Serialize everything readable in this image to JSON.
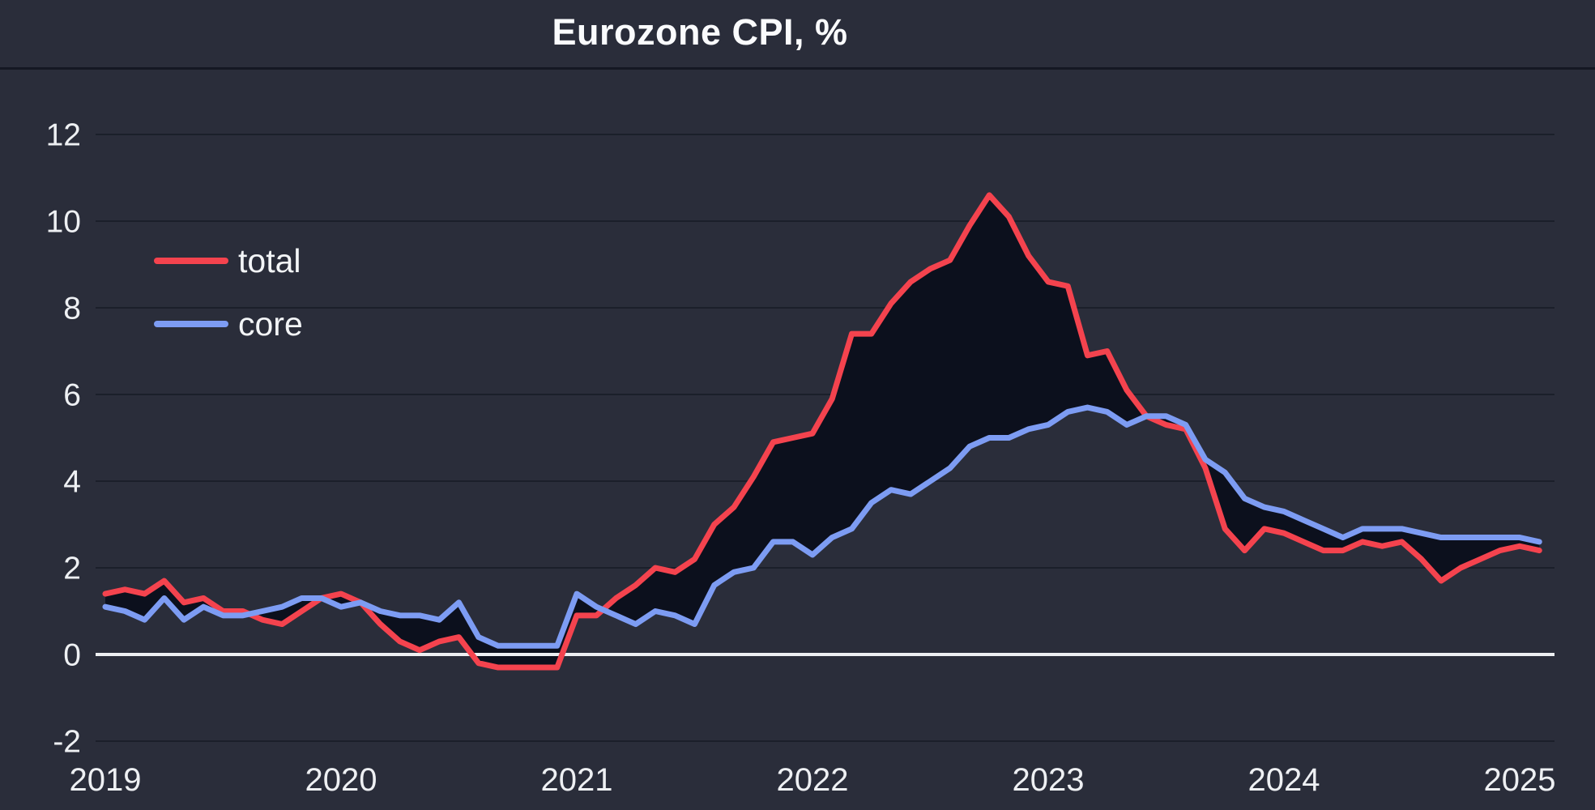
{
  "title": "Eurozone CPI, %",
  "colors": {
    "background": "#2a2d3a",
    "band": "#0c101d",
    "grid": "#1b1f2a",
    "zero_line": "#edeff2",
    "text": "#eef0f3",
    "title_text": "#fafbfd",
    "total": "#f4434e",
    "core": "#7d9cf3"
  },
  "legend": {
    "position": "top-left",
    "items": [
      {
        "label": "total"
      },
      {
        "label": "core"
      }
    ]
  },
  "chart_data": {
    "type": "line",
    "title": "Eurozone CPI, %",
    "x_unit": "month",
    "x_range": [
      "2019-01",
      "2025-02"
    ],
    "x_tick_labels": [
      "2019",
      "2020",
      "2021",
      "2022",
      "2023",
      "2024",
      "2025"
    ],
    "y_ticks": [
      -2,
      0,
      2,
      4,
      6,
      8,
      10,
      12
    ],
    "ylim": [
      -2.9,
      13.5
    ],
    "grid": "horizontal",
    "legend_position": "top-left",
    "series": [
      {
        "name": "total",
        "color": "#f4434e",
        "values": [
          1.4,
          1.5,
          1.4,
          1.7,
          1.2,
          1.3,
          1.0,
          1.0,
          0.8,
          0.7,
          1.0,
          1.3,
          1.4,
          1.2,
          0.7,
          0.3,
          0.1,
          0.3,
          0.4,
          -0.2,
          -0.3,
          -0.3,
          -0.3,
          -0.3,
          0.9,
          0.9,
          1.3,
          1.6,
          2.0,
          1.9,
          2.2,
          3.0,
          3.4,
          4.1,
          4.9,
          5.0,
          5.1,
          5.9,
          7.4,
          7.4,
          8.1,
          8.6,
          8.9,
          9.1,
          9.9,
          10.6,
          10.1,
          9.2,
          8.6,
          8.5,
          6.9,
          7.0,
          6.1,
          5.5,
          5.3,
          5.2,
          4.3,
          2.9,
          2.4,
          2.9,
          2.8,
          2.6,
          2.4,
          2.4,
          2.6,
          2.5,
          2.6,
          2.2,
          1.7,
          2.0,
          2.2,
          2.4,
          2.5,
          2.4
        ]
      },
      {
        "name": "core",
        "color": "#7d9cf3",
        "values": [
          1.1,
          1.0,
          0.8,
          1.3,
          0.8,
          1.1,
          0.9,
          0.9,
          1.0,
          1.1,
          1.3,
          1.3,
          1.1,
          1.2,
          1.0,
          0.9,
          0.9,
          0.8,
          1.2,
          0.4,
          0.2,
          0.2,
          0.2,
          0.2,
          1.4,
          1.1,
          0.9,
          0.7,
          1.0,
          0.9,
          0.7,
          1.6,
          1.9,
          2.0,
          2.6,
          2.6,
          2.3,
          2.7,
          2.9,
          3.5,
          3.8,
          3.7,
          4.0,
          4.3,
          4.8,
          5.0,
          5.0,
          5.2,
          5.3,
          5.6,
          5.7,
          5.6,
          5.3,
          5.5,
          5.5,
          5.3,
          4.5,
          4.2,
          3.6,
          3.4,
          3.3,
          3.1,
          2.9,
          2.7,
          2.9,
          2.9,
          2.9,
          2.8,
          2.7,
          2.7,
          2.7,
          2.7,
          2.7,
          2.6
        ]
      }
    ]
  }
}
